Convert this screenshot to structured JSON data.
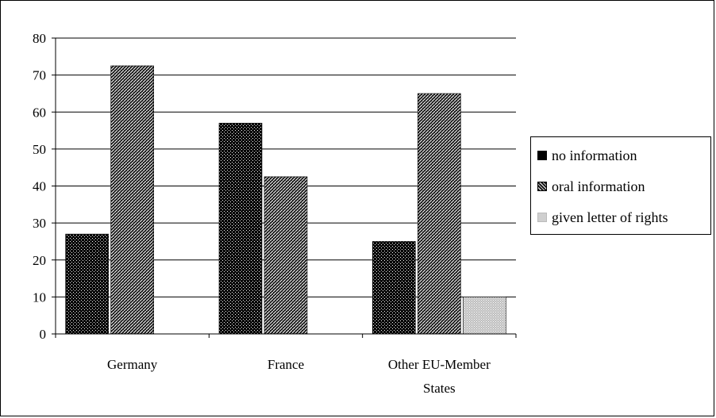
{
  "chart_data": {
    "type": "bar",
    "categories": [
      "Germany",
      "France",
      "Other EU-Member States"
    ],
    "category_lines": [
      [
        "Germany"
      ],
      [
        "France"
      ],
      [
        "Other EU-Member",
        "States"
      ]
    ],
    "series": [
      {
        "name": "no information",
        "values": [
          27,
          57,
          25
        ],
        "color": "#000000",
        "pattern": "dots-dark"
      },
      {
        "name": "oral information",
        "values": [
          72.5,
          42.5,
          65
        ],
        "color": "#3a3a3a",
        "pattern": "diagonal"
      },
      {
        "name": "given letter of rights",
        "values": [
          0,
          0,
          10
        ],
        "color": "#cfcfcf",
        "pattern": "light-dots"
      }
    ],
    "ylim": [
      0,
      80
    ],
    "yticks": [
      "0",
      "10",
      "20",
      "30",
      "40",
      "50",
      "60",
      "70",
      "80"
    ],
    "ytick_values": [
      0,
      10,
      20,
      30,
      40,
      50,
      60,
      70,
      80
    ],
    "grid": true,
    "legend_position": "right",
    "title": "",
    "xlabel": "",
    "ylabel": ""
  }
}
